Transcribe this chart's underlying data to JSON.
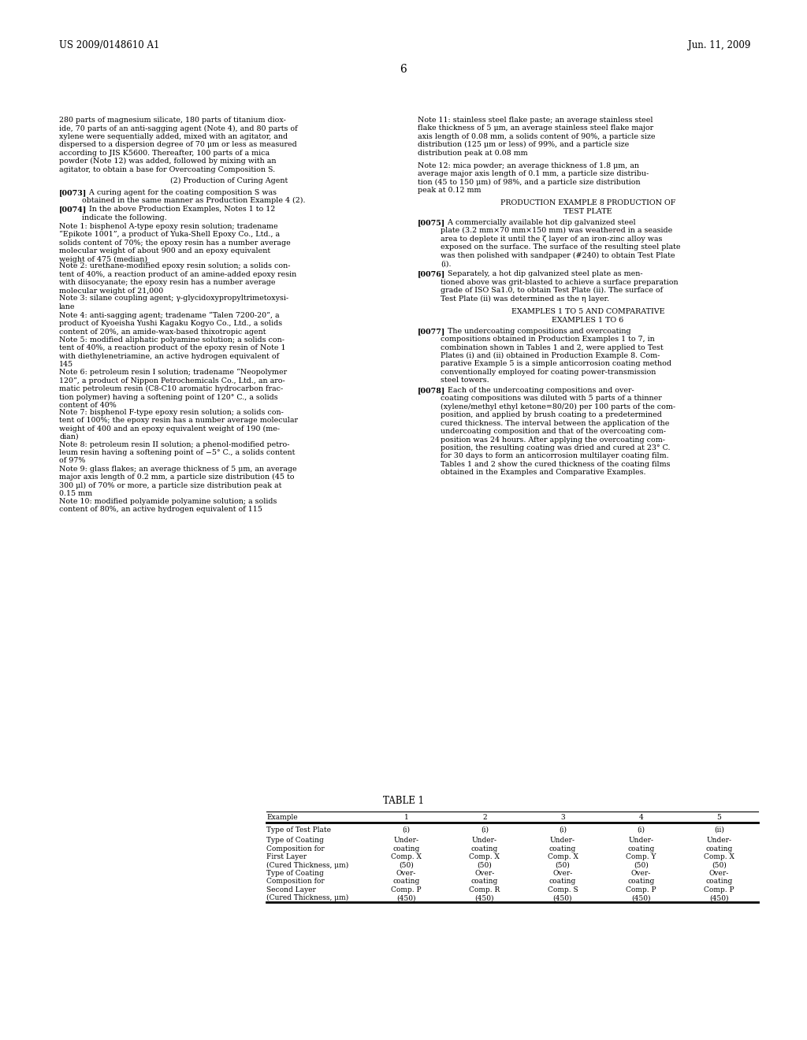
{
  "background_color": "#ffffff",
  "header_left": "US 2009/0148610 A1",
  "header_right": "Jun. 11, 2009",
  "page_number": "6",
  "left_col_blocks": [
    {
      "type": "normal",
      "text": "280 parts of magnesium silicate, 180 parts of titanium diox-\nide, 70 parts of an anti-sagging agent (Note 4), and 80 parts of\nxylene were sequentially added, mixed with an agitator, and\ndispersed to a dispersion degree of 70 μm or less as measured\naccording to JIS K5600. Thereafter, 100 parts of a mica\npowder (Note 12) was added, followed by mixing with an\nagitator, to obtain a base for Overcoating Composition S."
    },
    {
      "type": "gap",
      "lines": 0.7
    },
    {
      "type": "center",
      "text": "(2) Production of Curing Agent"
    },
    {
      "type": "gap",
      "lines": 0.5
    },
    {
      "type": "bracket",
      "tag": "[0073]",
      "text": "   A curing agent for the coating composition S was\nobtained in the same manner as Production Example 4 (2)."
    },
    {
      "type": "bracket",
      "tag": "[0074]",
      "text": "   In the above Production Examples, Notes 1 to 12\nindicate the following."
    },
    {
      "type": "normal",
      "text": "Note 1: bisphenol A-type epoxy resin solution; tradename\n“Epikote 1001”, a product of Yuka-Shell Epoxy Co., Ltd., a\nsolids content of 70%; the epoxy resin has a number average\nmolecular weight of about 900 and an epoxy equivalent\nweight of 475 (median)"
    },
    {
      "type": "normal",
      "text": "Note 2: urethane-modified epoxy resin solution; a solids con-\ntent of 40%, a reaction product of an amine-added epoxy resin\nwith diisocyanate; the epoxy resin has a number average\nmolecular weight of 21,000"
    },
    {
      "type": "normal",
      "text": "Note 3: silane coupling agent; γ-glycidoxypropyltrimetoxysi-\nlane"
    },
    {
      "type": "normal",
      "text": "Note 4: anti-sagging agent; tradename “Talen 7200-20”, a\nproduct of Kyoeisha Yushi Kagaku Kogyo Co., Ltd., a solids\ncontent of 20%, an amide-wax-based thixotropic agent"
    },
    {
      "type": "normal",
      "text": "Note 5: modified aliphatic polyamine solution; a solids con-\ntent of 40%, a reaction product of the epoxy resin of Note 1\nwith diethylenetriamine, an active hydrogen equivalent of\n145"
    },
    {
      "type": "normal",
      "text": "Note 6: petroleum resin I solution; tradename “Neopolymer\n120”, a product of Nippon Petrochemicals Co., Ltd., an aro-\nmatic petroleum resin (C8-C10 aromatic hydrocarbon frac-\ntion polymer) having a softening point of 120° C., a solids\ncontent of 40%"
    },
    {
      "type": "normal",
      "text": "Note 7: bisphenol F-type epoxy resin solution; a solids con-\ntent of 100%; the epoxy resin has a number average molecular\nweight of 400 and an epoxy equivalent weight of 190 (me-\ndian)"
    },
    {
      "type": "normal",
      "text": "Note 8: petroleum resin II solution; a phenol-modified petro-\nleum resin having a softening point of −5° C., a solids content\nof 97%"
    },
    {
      "type": "normal",
      "text": "Note 9: glass flakes; an average thickness of 5 μm, an average\nmajor axis length of 0.2 mm, a particle size distribution (45 to\n300 μl) of 70% or more, a particle size distribution peak at\n0.15 mm"
    },
    {
      "type": "normal",
      "text": "Note 10: modified polyamide polyamine solution; a solids\ncontent of 80%, an active hydrogen equivalent of 115"
    }
  ],
  "right_col_blocks": [
    {
      "type": "normal",
      "text": "Note 11: stainless steel flake paste; an average stainless steel\nflake thickness of 5 μm, an average stainless steel flake major\naxis length of 0.08 mm, a solids content of 90%, a particle size\ndistribution (125 μm or less) of 99%, and a particle size\ndistribution peak at 0.08 mm"
    },
    {
      "type": "gap",
      "lines": 0.7
    },
    {
      "type": "normal",
      "text": "Note 12: mica powder; an average thickness of 1.8 μm, an\naverage major axis length of 0.1 mm, a particle size distribu-\ntion (45 to 150 μm) of 98%, and a particle size distribution\npeak at 0.12 mm"
    },
    {
      "type": "gap",
      "lines": 0.7
    },
    {
      "type": "center",
      "text": "PRODUCTION EXAMPLE 8 PRODUCTION OF\nTEST PLATE"
    },
    {
      "type": "gap",
      "lines": 0.5
    },
    {
      "type": "bracket",
      "tag": "[0075]",
      "text": "   A commercially available hot dip galvanized steel\nplate (3.2 mm×70 mm×150 mm) was weathered in a seaside\narea to deplete it until the ζ layer of an iron-zinc alloy was\nexposed on the surface. The surface of the resulting steel plate\nwas then polished with sandpaper (#240) to obtain Test Plate\n(i)."
    },
    {
      "type": "gap",
      "lines": 0.5
    },
    {
      "type": "bracket",
      "tag": "[0076]",
      "text": "   Separately, a hot dip galvanized steel plate as men-\ntioned above was grit-blasted to achieve a surface preparation\ngrade of ISO Sa1.0, to obtain Test Plate (ii). The surface of\nTest Plate (ii) was determined as the η layer."
    },
    {
      "type": "gap",
      "lines": 0.7
    },
    {
      "type": "center",
      "text": "EXAMPLES 1 TO 5 AND COMPARATIVE\nEXAMPLES 1 TO 6"
    },
    {
      "type": "gap",
      "lines": 0.5
    },
    {
      "type": "bracket",
      "tag": "[0077]",
      "text": "   The undercoating compositions and overcoating\ncompositions obtained in Production Examples 1 to 7, in\ncombination shown in Tables 1 and 2, were applied to Test\nPlates (i) and (ii) obtained in Production Example 8. Com-\nparative Example 5 is a simple anticorrosion coating method\nconventionally employed for coating power-transmission\nsteel towers."
    },
    {
      "type": "gap",
      "lines": 0.5
    },
    {
      "type": "bracket",
      "tag": "[0078]",
      "text": "   Each of the undercoating compositions and over-\ncoating compositions was diluted with 5 parts of a thinner\n(xylene/methyl ethyl ketone=80/20) per 100 parts of the com-\nposition, and applied by brush coating to a predetermined\ncured thickness. The interval between the application of the\nundercoating composition and that of the overcoating com-\nposition was 24 hours. After applying the overcoating com-\nposition, the resulting coating was dried and cured at 23° C.\nfor 30 days to form an anticorrosion multilayer coating film.\nTables 1 and 2 show the cured thickness of the coating films\nobtained in the Examples and Comparative Examples."
    }
  ],
  "table_title": "TABLE 1",
  "table_headers": [
    "Example",
    "1",
    "2",
    "3",
    "4",
    "5"
  ],
  "table_row1_label": "Type of Test Plate",
  "table_row1_vals": [
    "(i)",
    "(i)",
    "(i)",
    "(i)",
    "(ii)"
  ],
  "table_row2_label": "Type of Coating\nComposition for\nFirst Layer\n(Cured Thickness, μm)",
  "table_row2_vals": [
    "Under-\ncoating\nComp. X\n(50)",
    "Under-\ncoating\nComp. X\n(50)",
    "Under-\ncoating\nComp. X\n(50)",
    "Under-\ncoating\nComp. Y\n(50)",
    "Under-\ncoating\nComp. X\n(50)"
  ],
  "table_row3_label": "Type of Coating\nComposition for\nSecond Layer\n(Cured Thickness, μm)",
  "table_row3_vals": [
    "Over-\ncoating\nComp. P\n(450)",
    "Over-\ncoating\nComp. R\n(450)",
    "Over-\ncoating\nComp. S\n(450)",
    "Over-\ncoating\nComp. P\n(450)",
    "Over-\ncoating\nComp. P\n(450)"
  ]
}
